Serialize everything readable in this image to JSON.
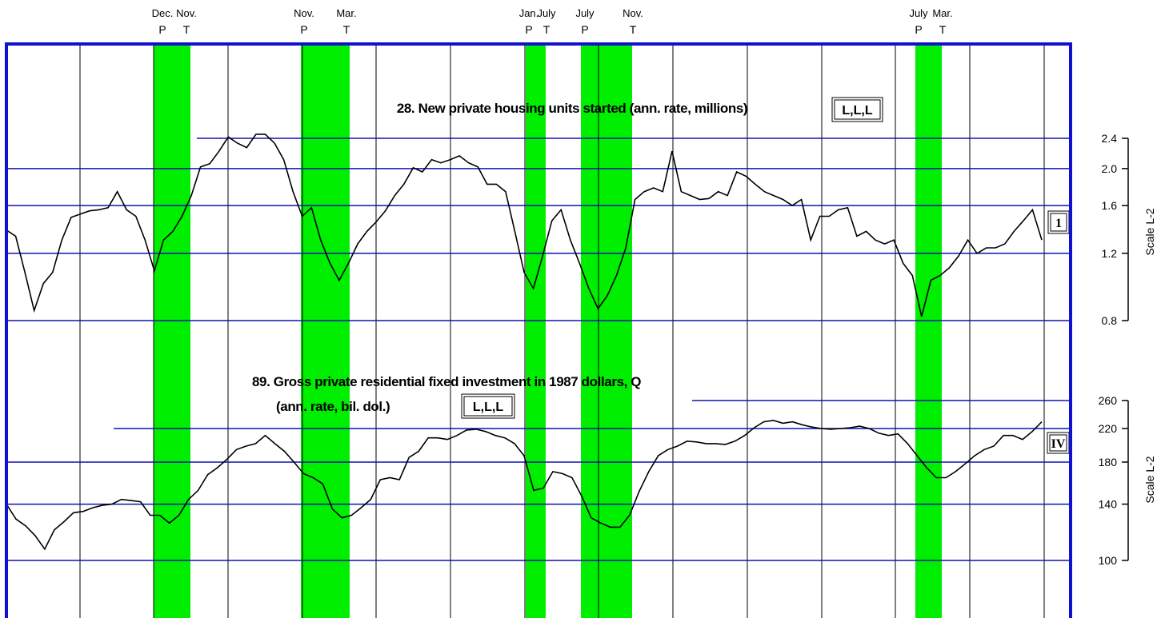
{
  "chart_data": [
    {
      "type": "line",
      "title": "28. New private housing units started (ann. rate, millions)",
      "rating": "L,L,L",
      "panel_label": "1",
      "y_axis_label": "Scale L-2",
      "log_scale": true,
      "grid": true,
      "ylim": [
        0.8,
        2.4
      ],
      "yticks": [
        0.8,
        1.2,
        1.6,
        {
          "value": 2,
          "label": "2.0"
        },
        2.4
      ],
      "series": [
        {
          "color": "#000000",
          "values": [
            1.38,
            1.33,
            1.07,
            0.85,
            1.0,
            1.07,
            1.3,
            1.49,
            1.52,
            1.55,
            1.56,
            1.58,
            1.74,
            1.56,
            1.5,
            1.3,
            1.08,
            1.3,
            1.37,
            1.5,
            1.7,
            2.02,
            2.06,
            2.22,
            2.42,
            2.33,
            2.27,
            2.46,
            2.46,
            2.33,
            2.11,
            1.74,
            1.5,
            1.58,
            1.3,
            1.13,
            1.02,
            1.13,
            1.27,
            1.37,
            1.45,
            1.55,
            1.7,
            1.82,
            2.01,
            1.96,
            2.11,
            2.07,
            2.11,
            2.16,
            2.07,
            2.02,
            1.82,
            1.82,
            1.74,
            1.37,
            1.07,
            0.97,
            1.18,
            1.46,
            1.56,
            1.3,
            1.13,
            0.97,
            0.86,
            0.93,
            1.05,
            1.24,
            1.66,
            1.74,
            1.78,
            1.74,
            2.22,
            1.74,
            1.7,
            1.66,
            1.67,
            1.74,
            1.7,
            1.96,
            1.91,
            1.82,
            1.74,
            1.7,
            1.66,
            1.6,
            1.66,
            1.3,
            1.5,
            1.5,
            1.56,
            1.58,
            1.33,
            1.37,
            1.3,
            1.27,
            1.3,
            1.13,
            1.05,
            0.82,
            1.02,
            1.05,
            1.1,
            1.18,
            1.3,
            1.2,
            1.24,
            1.24,
            1.27,
            1.37,
            1.46,
            1.56,
            1.3
          ]
        }
      ]
    },
    {
      "type": "line",
      "title": "89. Gross private residential fixed investment in 1987 dollars, Q",
      "subtitle": "(ann. rate, bil. dol.)",
      "rating": "L,L,L",
      "panel_label": "IV",
      "y_axis_label": "Scale L-2",
      "log_scale": true,
      "grid": true,
      "ylim": [
        100,
        260
      ],
      "yticks": [
        100,
        140,
        180,
        220,
        260
      ],
      "series": [
        {
          "color": "#000000",
          "values": [
            140,
            128,
            123,
            116,
            107,
            120,
            126,
            133,
            134,
            137,
            139,
            140,
            144,
            143,
            142,
            131,
            131,
            125,
            131,
            144,
            152,
            167,
            174,
            183,
            194,
            198,
            201,
            211,
            201,
            192,
            180,
            168,
            164,
            158,
            136,
            129,
            131,
            137,
            144,
            162,
            164,
            162,
            185,
            192,
            208,
            208,
            206,
            211,
            218,
            219,
            216,
            211,
            208,
            201,
            187,
            152,
            154,
            170,
            168,
            164,
            147,
            129,
            125,
            122,
            122,
            131,
            151,
            170,
            187,
            194,
            198,
            204,
            203,
            201,
            201,
            200,
            204,
            211,
            221,
            229,
            231,
            227,
            229,
            225,
            222,
            220,
            219,
            220,
            221,
            223,
            220,
            214,
            211,
            213,
            201,
            187,
            174,
            164,
            164,
            170,
            178,
            187,
            194,
            198,
            211,
            211,
            206,
            216,
            229
          ]
        }
      ]
    }
  ],
  "recessions": [
    {
      "peak_month": "Dec.",
      "peak": "P",
      "trough_month": "Nov.",
      "trough": "T"
    },
    {
      "peak_month": "Nov.",
      "peak": "P",
      "trough_month": "Mar.",
      "trough": "T"
    },
    {
      "peak_month": "Jan.",
      "peak": "P",
      "trough_month": "July",
      "trough": "T"
    },
    {
      "peak_month": "July",
      "peak": "P",
      "trough_month": "Nov.",
      "trough": "T"
    },
    {
      "peak_month": "July",
      "peak": "P",
      "trough_month": "Mar.",
      "trough": "T"
    }
  ]
}
